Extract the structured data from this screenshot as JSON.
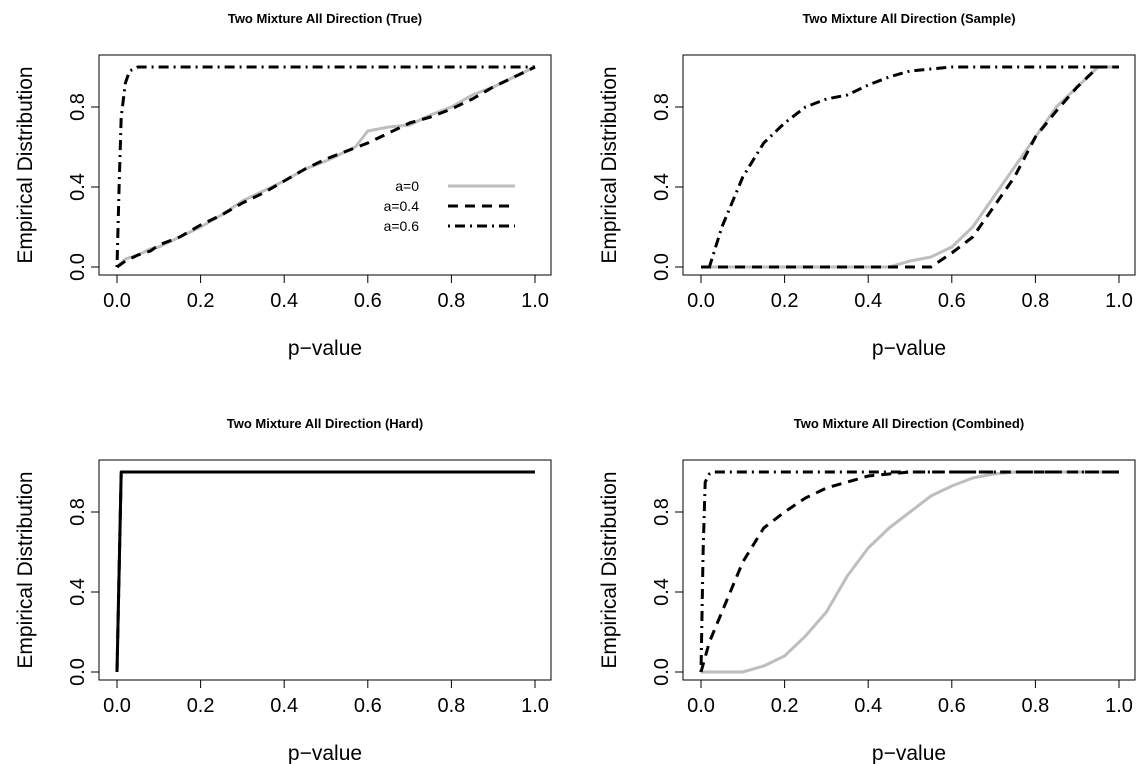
{
  "chart_data": [
    {
      "type": "line",
      "title": "Two Mixture All Direction (True)",
      "xlabel": "p−value",
      "ylabel": "Empirical Distribution",
      "xlim": [
        0,
        1
      ],
      "ylim": [
        0,
        1
      ],
      "xticks": [
        "0.0",
        "0.2",
        "0.4",
        "0.6",
        "0.8",
        "1.0"
      ],
      "yticks": [
        "0.0",
        "0.4",
        "0.8"
      ],
      "legend": "center-right",
      "series": [
        {
          "name": "a=0",
          "color": "#bebebe",
          "style": "solid",
          "x": [
            0,
            0.02,
            0.05,
            0.08,
            0.1,
            0.15,
            0.2,
            0.25,
            0.3,
            0.35,
            0.4,
            0.45,
            0.5,
            0.55,
            0.57,
            0.6,
            0.65,
            0.7,
            0.75,
            0.8,
            0.85,
            0.9,
            0.95,
            1.0
          ],
          "y": [
            0,
            0.04,
            0.06,
            0.09,
            0.1,
            0.15,
            0.2,
            0.26,
            0.33,
            0.38,
            0.43,
            0.49,
            0.53,
            0.58,
            0.6,
            0.68,
            0.7,
            0.71,
            0.76,
            0.8,
            0.86,
            0.9,
            0.95,
            1.0
          ]
        },
        {
          "name": "a=0.4",
          "color": "#000000",
          "style": "dashed",
          "x": [
            0,
            0.02,
            0.05,
            0.08,
            0.1,
            0.15,
            0.2,
            0.25,
            0.3,
            0.35,
            0.4,
            0.45,
            0.5,
            0.55,
            0.6,
            0.65,
            0.7,
            0.75,
            0.8,
            0.85,
            0.9,
            0.95,
            1.0
          ],
          "y": [
            0,
            0.03,
            0.06,
            0.08,
            0.11,
            0.15,
            0.21,
            0.26,
            0.32,
            0.37,
            0.43,
            0.49,
            0.54,
            0.58,
            0.62,
            0.67,
            0.72,
            0.75,
            0.79,
            0.84,
            0.9,
            0.95,
            1.0
          ]
        },
        {
          "name": "a=0.6",
          "color": "#000000",
          "style": "dotdash",
          "x": [
            0,
            0.005,
            0.01,
            0.02,
            0.03,
            0.05,
            1.0
          ],
          "y": [
            0,
            0.4,
            0.75,
            0.92,
            0.98,
            1.0,
            1.0
          ]
        }
      ]
    },
    {
      "type": "line",
      "title": "Two Mixture All Direction (Sample)",
      "xlabel": "p−value",
      "ylabel": "Empirical Distribution",
      "xlim": [
        0,
        1
      ],
      "ylim": [
        0,
        1
      ],
      "xticks": [
        "0.0",
        "0.2",
        "0.4",
        "0.6",
        "0.8",
        "1.0"
      ],
      "yticks": [
        "0.0",
        "0.4",
        "0.8"
      ],
      "series": [
        {
          "name": "a=0",
          "color": "#bebebe",
          "style": "solid",
          "x": [
            0,
            0.45,
            0.5,
            0.55,
            0.6,
            0.65,
            0.7,
            0.75,
            0.8,
            0.85,
            0.9,
            0.95,
            1.0
          ],
          "y": [
            0,
            0,
            0.03,
            0.05,
            0.1,
            0.2,
            0.35,
            0.5,
            0.65,
            0.8,
            0.9,
            1.0,
            1.0
          ]
        },
        {
          "name": "a=0.4",
          "color": "#000000",
          "style": "dashed",
          "x": [
            0,
            0.55,
            0.6,
            0.65,
            0.7,
            0.75,
            0.8,
            0.85,
            0.9,
            0.95,
            1.0
          ],
          "y": [
            0,
            0,
            0.07,
            0.15,
            0.3,
            0.45,
            0.65,
            0.78,
            0.9,
            1.0,
            1.0
          ]
        },
        {
          "name": "a=0.6",
          "color": "#000000",
          "style": "dotdash",
          "x": [
            0,
            0.02,
            0.05,
            0.1,
            0.15,
            0.2,
            0.25,
            0.3,
            0.35,
            0.4,
            0.45,
            0.5,
            0.55,
            0.6,
            0.7,
            1.0
          ],
          "y": [
            0,
            0,
            0.2,
            0.45,
            0.62,
            0.72,
            0.8,
            0.84,
            0.86,
            0.91,
            0.95,
            0.98,
            0.99,
            1.0,
            1.0,
            1.0
          ]
        }
      ]
    },
    {
      "type": "line",
      "title": "Two Mixture All Direction (Hard)",
      "xlabel": "p−value",
      "ylabel": "Empirical Distribution",
      "xlim": [
        0,
        1
      ],
      "ylim": [
        0,
        1
      ],
      "xticks": [
        "0.0",
        "0.2",
        "0.4",
        "0.6",
        "0.8",
        "1.0"
      ],
      "yticks": [
        "0.0",
        "0.4",
        "0.8"
      ],
      "series": [
        {
          "name": "a=0",
          "color": "#bebebe",
          "style": "solid",
          "x": [
            0,
            0.01,
            1.0
          ],
          "y": [
            0,
            1.0,
            1.0
          ]
        },
        {
          "name": "a=0.4",
          "color": "#000000",
          "style": "dashed",
          "x": [
            0,
            0.01,
            1.0
          ],
          "y": [
            0,
            1.0,
            1.0
          ]
        },
        {
          "name": "a=0.6",
          "color": "#000000",
          "style": "solid",
          "x": [
            0,
            0.01,
            1.0
          ],
          "y": [
            0,
            1.0,
            1.0
          ]
        }
      ]
    },
    {
      "type": "line",
      "title": "Two Mixture All Direction (Combined)",
      "xlabel": "p−value",
      "ylabel": "Empirical Distribution",
      "xlim": [
        0,
        1
      ],
      "ylim": [
        0,
        1
      ],
      "xticks": [
        "0.0",
        "0.2",
        "0.4",
        "0.6",
        "0.8",
        "1.0"
      ],
      "yticks": [
        "0.0",
        "0.4",
        "0.8"
      ],
      "series": [
        {
          "name": "a=0",
          "color": "#bebebe",
          "style": "solid",
          "x": [
            0,
            0.1,
            0.15,
            0.2,
            0.25,
            0.3,
            0.35,
            0.4,
            0.45,
            0.5,
            0.55,
            0.6,
            0.65,
            0.7,
            0.75,
            1.0
          ],
          "y": [
            0,
            0,
            0.03,
            0.08,
            0.18,
            0.3,
            0.48,
            0.62,
            0.72,
            0.8,
            0.88,
            0.93,
            0.97,
            0.99,
            1.0,
            1.0
          ]
        },
        {
          "name": "a=0.4",
          "color": "#000000",
          "style": "dashed",
          "x": [
            0,
            0.02,
            0.05,
            0.1,
            0.15,
            0.2,
            0.25,
            0.3,
            0.35,
            0.4,
            0.45,
            0.5,
            1.0
          ],
          "y": [
            0,
            0.15,
            0.3,
            0.55,
            0.72,
            0.8,
            0.87,
            0.92,
            0.95,
            0.98,
            0.99,
            1.0,
            1.0
          ]
        },
        {
          "name": "a=0.6",
          "color": "#000000",
          "style": "dotdash",
          "x": [
            0,
            0.005,
            0.01,
            0.02,
            0.03,
            1.0
          ],
          "y": [
            0,
            0.6,
            0.95,
            0.99,
            1.0,
            1.0
          ]
        }
      ]
    }
  ]
}
